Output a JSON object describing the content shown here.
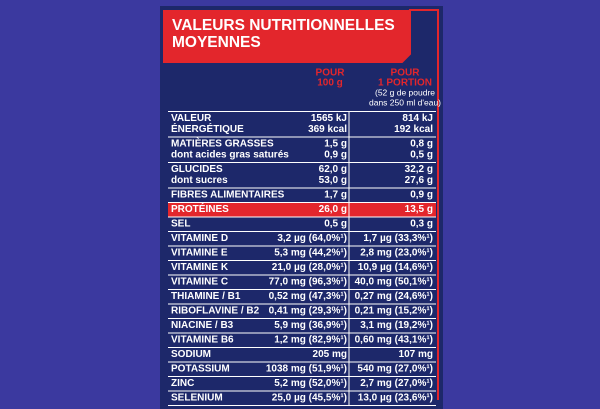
{
  "title": [
    "VALEURS NUTRITIONNELLES",
    "MOYENNES"
  ],
  "columns": [
    [
      "POUR",
      "100 g"
    ],
    [
      "POUR",
      "1 PORTION",
      "(52 g de poudre",
      "dans 250 ml d'eau)"
    ]
  ],
  "rows": [
    {
      "label": [
        "VALEUR",
        "ÉNERGÉTIQUE"
      ],
      "per_100g": [
        "1565 kJ",
        "369 kcal"
      ],
      "per_portion": [
        "814 kJ",
        "192 kcal"
      ]
    },
    {
      "label": [
        "MATIÈRES GRASSES",
        "dont acides gras saturés"
      ],
      "per_100g": [
        "1,5 g",
        "0,9 g"
      ],
      "per_portion": [
        "0,8 g",
        "0,5 g"
      ]
    },
    {
      "label": [
        "GLUCIDES",
        "dont sucres"
      ],
      "per_100g": [
        "62,0 g",
        "53,0 g"
      ],
      "per_portion": [
        "32,2 g",
        "27,6 g"
      ]
    },
    {
      "label": [
        "FIBRES ALIMENTAIRES"
      ],
      "per_100g": [
        "1,7 g"
      ],
      "per_portion": [
        "0,9 g"
      ]
    },
    {
      "label": [
        "PROTÉINES"
      ],
      "per_100g": [
        "26,0 g"
      ],
      "per_portion": [
        "13,5 g"
      ]
    },
    {
      "label": [
        "SEL"
      ],
      "per_100g": [
        "0,5 g"
      ],
      "per_portion": [
        "0,3 g"
      ]
    },
    {
      "label": [
        "VITAMINE D"
      ],
      "per_100g": [
        "3,2 µg (64,0%¹)"
      ],
      "per_portion": [
        "1,7 µg (33,3%¹)"
      ]
    },
    {
      "label": [
        "VITAMINE E"
      ],
      "per_100g": [
        "5,3 mg (44,2%¹)"
      ],
      "per_portion": [
        "2,8 mg (23,0%¹)"
      ]
    },
    {
      "label": [
        "VITAMINE K"
      ],
      "per_100g": [
        "21,0 µg (28,0%¹)"
      ],
      "per_portion": [
        "10,9 µg (14,6%¹)"
      ]
    },
    {
      "label": [
        "VITAMINE C"
      ],
      "per_100g": [
        "77,0 mg (96,3%¹)"
      ],
      "per_portion": [
        "40,0 mg (50,1%¹)"
      ]
    },
    {
      "label": [
        "THIAMINE / B1"
      ],
      "per_100g": [
        "0,52 mg (47,3%¹)"
      ],
      "per_portion": [
        "0,27 mg (24,6%¹)"
      ]
    },
    {
      "label": [
        "RIBOFLAVINE / B2"
      ],
      "per_100g": [
        "0,41 mg (29,3%¹)"
      ],
      "per_portion": [
        "0,21 mg (15,2%¹)"
      ]
    },
    {
      "label": [
        "NIACINE / B3"
      ],
      "per_100g": [
        "5,9 mg (36,9%¹)"
      ],
      "per_portion": [
        "3,1 mg (19,2%¹)"
      ]
    },
    {
      "label": [
        "VITAMINE B6"
      ],
      "per_100g": [
        "1,2 mg (82,9%¹)"
      ],
      "per_portion": [
        "0,60 mg (43,1%¹)"
      ]
    },
    {
      "label": [
        "SODIUM"
      ],
      "per_100g": [
        "205 mg"
      ],
      "per_portion": [
        "107 mg"
      ]
    },
    {
      "label": [
        "POTASSIUM"
      ],
      "per_100g": [
        "1038 mg (51,9%¹)"
      ],
      "per_portion": [
        "540 mg (27,0%¹)"
      ]
    },
    {
      "label": [
        "ZINC"
      ],
      "per_100g": [
        "5,2 mg (52,0%¹)"
      ],
      "per_portion": [
        "2,7 mg (27,0%¹)"
      ]
    },
    {
      "label": [
        "SELENIUM"
      ],
      "per_100g": [
        "25,0 µg (45,5%¹)"
      ],
      "per_portion": [
        "13,0 µg (23,6%¹)"
      ]
    }
  ]
}
